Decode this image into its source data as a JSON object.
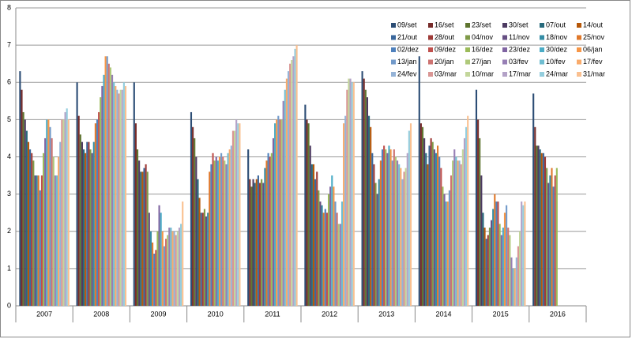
{
  "chart_data": {
    "type": "bar",
    "categories": [
      "2007",
      "2008",
      "2009",
      "2010",
      "2011",
      "2012",
      "2013",
      "2014",
      "2015",
      "2016"
    ],
    "ylim": [
      0,
      8
    ],
    "yticks": [
      0,
      1,
      2,
      3,
      4,
      5,
      6,
      7,
      8
    ],
    "grid": true,
    "legend": "top-right",
    "series": [
      {
        "name": "09/set",
        "color": "#2C4D75",
        "values": [
          6.3,
          6.0,
          6.0,
          5.2,
          4.2,
          5.4,
          6.3,
          6.7,
          5.8,
          5.7
        ]
      },
      {
        "name": "16/set",
        "color": "#772C2A",
        "values": [
          5.8,
          5.1,
          4.9,
          4.8,
          3.4,
          5.0,
          6.1,
          4.9,
          5.0,
          4.8
        ]
      },
      {
        "name": "23/set",
        "color": "#5F7530",
        "values": [
          5.2,
          4.6,
          4.2,
          4.5,
          3.2,
          4.9,
          5.8,
          4.8,
          4.5,
          4.3
        ]
      },
      {
        "name": "30/set",
        "color": "#4D3B62",
        "values": [
          5.0,
          4.4,
          3.9,
          4.0,
          3.4,
          4.3,
          5.6,
          4.5,
          3.5,
          4.3
        ]
      },
      {
        "name": "07/out",
        "color": "#276A7C",
        "values": [
          4.7,
          4.2,
          3.6,
          3.4,
          3.3,
          3.8,
          5.1,
          4.1,
          2.5,
          4.2
        ]
      },
      {
        "name": "14/out",
        "color": "#B65708",
        "values": [
          4.4,
          4.1,
          3.6,
          2.9,
          3.4,
          3.8,
          4.8,
          3.8,
          2.1,
          4.1
        ]
      },
      {
        "name": "21/out",
        "color": "#3A679C",
        "values": [
          4.2,
          4.4,
          3.7,
          2.5,
          3.5,
          3.4,
          4.1,
          4.3,
          1.8,
          4.1
        ]
      },
      {
        "name": "28/out",
        "color": "#9E3B38",
        "values": [
          4.1,
          4.4,
          3.8,
          2.5,
          3.3,
          3.6,
          3.8,
          4.5,
          1.9,
          4.0
        ]
      },
      {
        "name": "04/nov",
        "color": "#7F9A48",
        "values": [
          3.9,
          4.2,
          3.6,
          2.6,
          3.4,
          3.1,
          3.3,
          4.4,
          2.1,
          3.7
        ]
      },
      {
        "name": "11/nov",
        "color": "#664F83",
        "values": [
          3.5,
          4.1,
          2.5,
          2.4,
          3.3,
          2.8,
          3.0,
          4.2,
          2.3,
          3.3
        ]
      },
      {
        "name": "18/nov",
        "color": "#358DA5",
        "values": [
          3.5,
          4.4,
          2.0,
          2.5,
          3.7,
          2.7,
          3.4,
          4.1,
          2.6,
          3.5
        ]
      },
      {
        "name": "25/nov",
        "color": "#E0782A",
        "values": [
          3.5,
          4.9,
          1.7,
          3.6,
          3.9,
          2.5,
          3.9,
          4.3,
          3.0,
          3.7
        ]
      },
      {
        "name": "02/dez",
        "color": "#4F81BD",
        "values": [
          3.1,
          5.0,
          1.4,
          3.8,
          4.1,
          2.6,
          4.2,
          4.0,
          2.8,
          3.2
        ]
      },
      {
        "name": "09/dez",
        "color": "#C0504D",
        "values": [
          3.5,
          5.2,
          1.5,
          4.1,
          4.0,
          2.5,
          4.3,
          3.7,
          2.8,
          3.5
        ]
      },
      {
        "name": "16/dez",
        "color": "#9BBB59",
        "values": [
          4.1,
          5.6,
          2.0,
          3.9,
          4.1,
          3.0,
          4.2,
          3.2,
          2.2,
          3.7
        ]
      },
      {
        "name": "23/dez",
        "color": "#8064A2",
        "values": [
          4.5,
          5.9,
          2.7,
          4.0,
          4.5,
          3.2,
          4.1,
          3.0,
          1.9,
          null
        ]
      },
      {
        "name": "30/dez",
        "color": "#4BACC6",
        "values": [
          5.0,
          6.2,
          2.5,
          3.9,
          4.9,
          3.5,
          4.3,
          2.8,
          2.1,
          null
        ]
      },
      {
        "name": "06/jan",
        "color": "#F79646",
        "values": [
          5.0,
          6.7,
          2.0,
          4.0,
          5.0,
          3.2,
          4.2,
          2.8,
          2.5,
          null
        ]
      },
      {
        "name": "13/jan",
        "color": "#729ACA",
        "values": [
          4.8,
          6.7,
          1.6,
          4.1,
          5.1,
          2.8,
          3.9,
          3.1,
          2.7,
          null
        ]
      },
      {
        "name": "20/jan",
        "color": "#CD7371",
        "values": [
          4.5,
          6.5,
          1.8,
          4.0,
          5.0,
          2.5,
          4.2,
          3.5,
          2.1,
          null
        ]
      },
      {
        "name": "27/jan",
        "color": "#AFC97A",
        "values": [
          4.0,
          6.4,
          1.9,
          3.9,
          5.0,
          2.2,
          4.0,
          3.9,
          1.9,
          null
        ]
      },
      {
        "name": "03/fev",
        "color": "#977FB5",
        "values": [
          3.5,
          6.2,
          2.1,
          3.8,
          5.5,
          2.2,
          3.9,
          4.2,
          1.3,
          null
        ]
      },
      {
        "name": "10/fev",
        "color": "#6FBDD1",
        "values": [
          3.5,
          6.0,
          2.1,
          4.1,
          5.8,
          2.8,
          3.8,
          4.0,
          1.0,
          null
        ]
      },
      {
        "name": "17/fev",
        "color": "#F9AB6B",
        "values": [
          4.0,
          5.9,
          2.0,
          4.2,
          6.1,
          4.9,
          3.7,
          3.9,
          1.0,
          null
        ]
      },
      {
        "name": "24/fev",
        "color": "#95B3D7",
        "values": [
          4.4,
          5.8,
          2.0,
          4.3,
          6.3,
          5.1,
          3.4,
          3.9,
          1.3,
          null
        ]
      },
      {
        "name": "03/mar",
        "color": "#D99694",
        "values": [
          5.0,
          5.7,
          1.9,
          4.7,
          6.5,
          5.8,
          3.6,
          3.8,
          1.6,
          null
        ]
      },
      {
        "name": "10/mar",
        "color": "#C3D69B",
        "values": [
          5.0,
          5.8,
          2.0,
          4.7,
          6.6,
          6.1,
          3.7,
          4.2,
          2.0,
          null
        ]
      },
      {
        "name": "17/mar",
        "color": "#B3A2C7",
        "values": [
          5.2,
          5.8,
          2.1,
          5.0,
          6.7,
          6.1,
          4.1,
          4.5,
          2.8,
          null
        ]
      },
      {
        "name": "24/mar",
        "color": "#93CDDD",
        "values": [
          5.3,
          6.0,
          2.2,
          4.9,
          6.9,
          6.0,
          4.7,
          4.8,
          2.7,
          null
        ]
      },
      {
        "name": "31/mar",
        "color": "#FAC090",
        "values": [
          5.0,
          5.9,
          2.8,
          4.9,
          7.0,
          6.0,
          4.9,
          5.1,
          2.8,
          null
        ]
      }
    ]
  }
}
